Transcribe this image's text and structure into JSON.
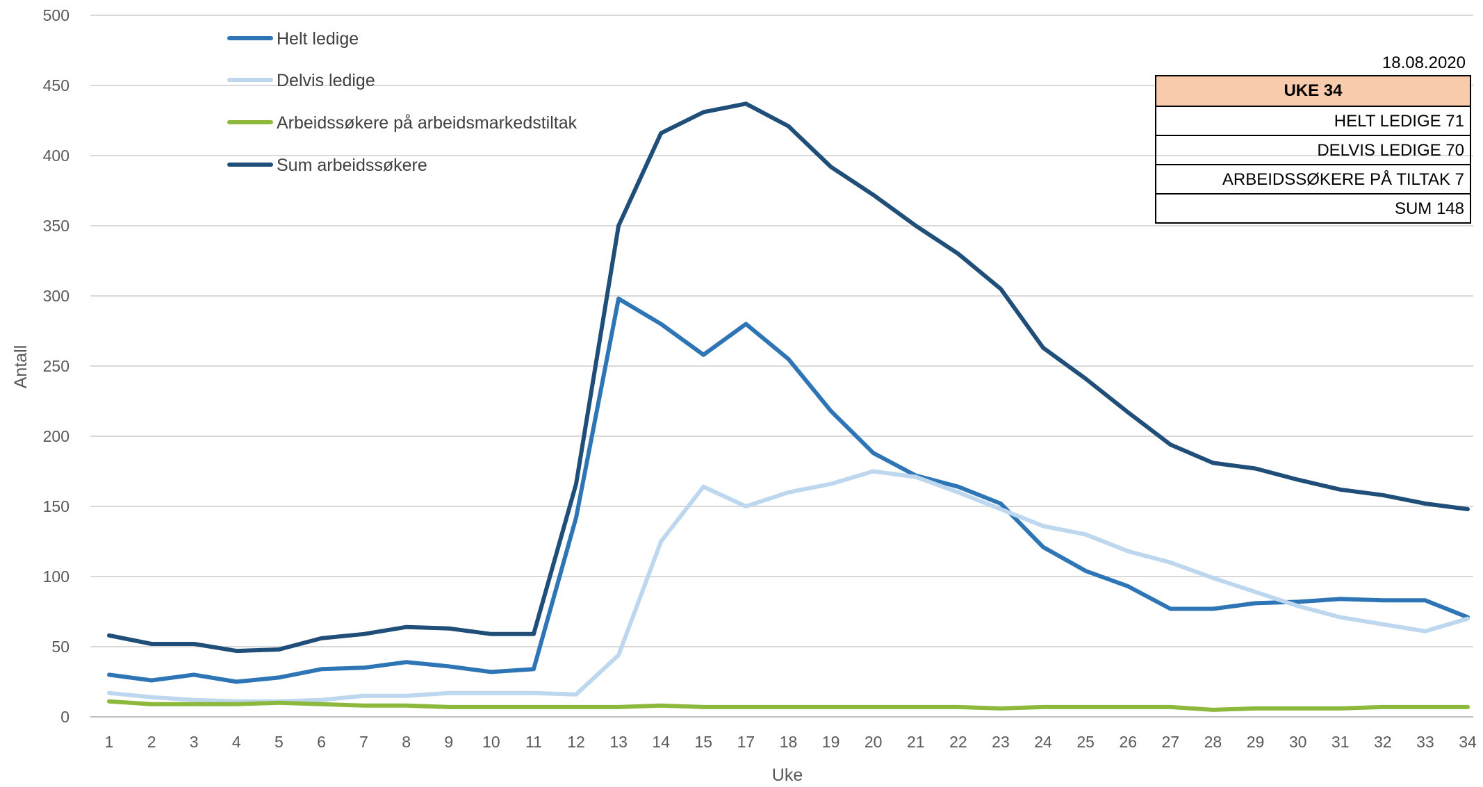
{
  "chart_data": {
    "type": "line",
    "title": "",
    "xlabel": "Uke",
    "ylabel": "Antall",
    "ylim": [
      0,
      500
    ],
    "yticks": [
      0,
      50,
      100,
      150,
      200,
      250,
      300,
      350,
      400,
      450,
      500
    ],
    "grid": true,
    "legend_position": "top-left",
    "categories": [
      "1",
      "2",
      "3",
      "4",
      "5",
      "6",
      "7",
      "8",
      "9",
      "10",
      "11",
      "12",
      "13",
      "14",
      "15",
      "17",
      "18",
      "19",
      "20",
      "21",
      "22",
      "23",
      "24",
      "25",
      "26",
      "27",
      "28",
      "29",
      "30",
      "31",
      "32",
      "33",
      "34"
    ],
    "series": [
      {
        "name": "Helt ledige",
        "color": "#2e75b6",
        "values": [
          30,
          26,
          30,
          25,
          28,
          34,
          35,
          39,
          36,
          32,
          34,
          142,
          298,
          280,
          258,
          280,
          255,
          218,
          188,
          172,
          164,
          152,
          121,
          104,
          93,
          77,
          77,
          81,
          82,
          84,
          83,
          83,
          71
        ]
      },
      {
        "name": "Delvis ledige",
        "color": "#bdd7ee",
        "values": [
          17,
          14,
          12,
          11,
          11,
          12,
          15,
          15,
          17,
          17,
          17,
          16,
          44,
          125,
          164,
          150,
          160,
          166,
          175,
          171,
          160,
          148,
          136,
          130,
          118,
          110,
          99,
          89,
          79,
          71,
          66,
          61,
          70
        ]
      },
      {
        "name": "Arbeidssøkere på arbeidsmarkedstiltak",
        "color": "#8cb83c",
        "values": [
          11,
          9,
          9,
          9,
          10,
          9,
          8,
          8,
          7,
          7,
          7,
          7,
          7,
          8,
          7,
          7,
          7,
          7,
          7,
          7,
          7,
          6,
          7,
          7,
          7,
          7,
          5,
          6,
          6,
          6,
          7,
          7,
          7
        ]
      },
      {
        "name": "Sum arbeidssøkere",
        "color": "#1f4e79",
        "values": [
          58,
          52,
          52,
          47,
          48,
          56,
          59,
          64,
          63,
          59,
          59,
          166,
          350,
          416,
          431,
          437,
          421,
          392,
          372,
          350,
          330,
          305,
          263,
          241,
          217,
          194,
          181,
          177,
          169,
          162,
          158,
          152,
          148
        ]
      }
    ]
  },
  "info_box": {
    "date": "18.08.2020",
    "header": "UKE  34",
    "rows": [
      "HELT LEDIGE  71",
      "DELVIS LEDIGE  70",
      "ARBEIDSSØKERE PÅ TILTAK  7",
      "SUM  148"
    ]
  }
}
